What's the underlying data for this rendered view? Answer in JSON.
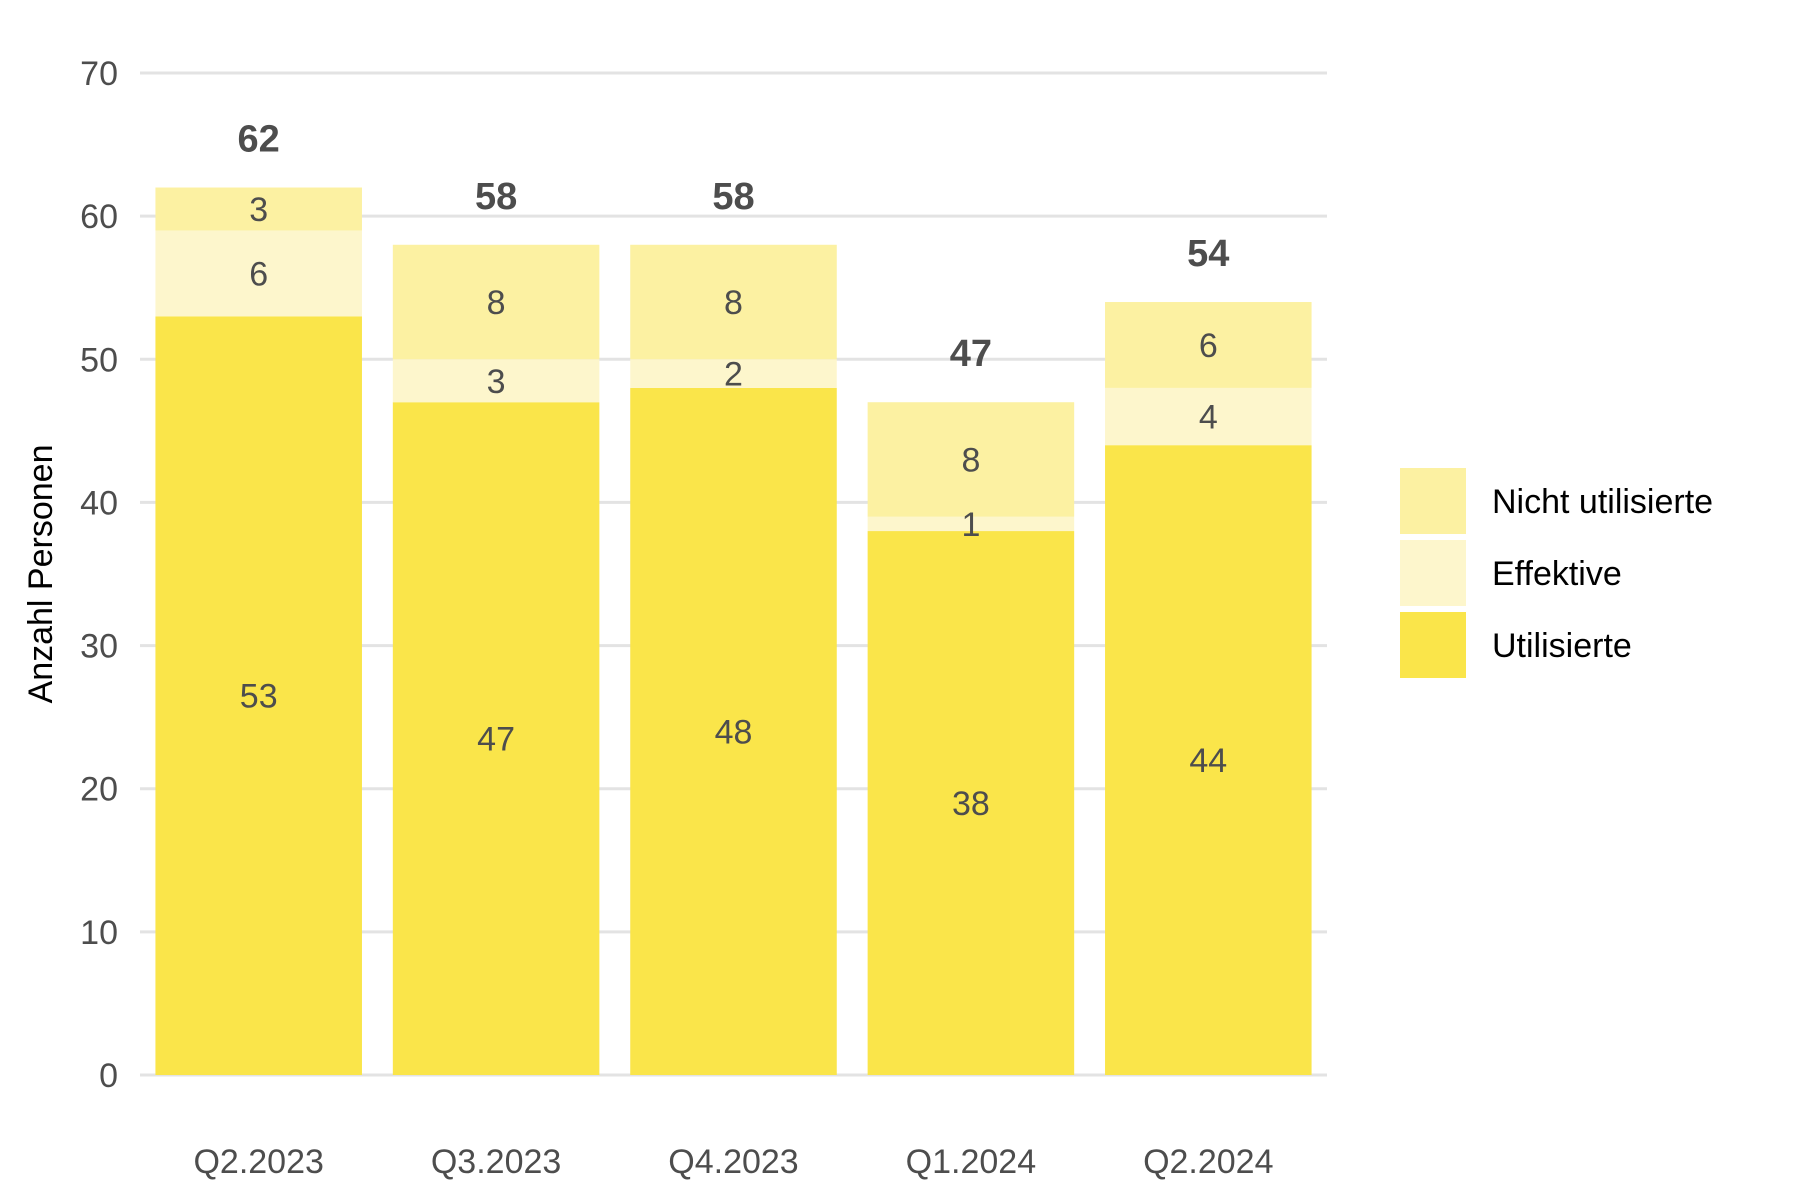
{
  "chart_data": {
    "type": "bar",
    "stacked": true,
    "categories": [
      "Q2.2023",
      "Q3.2023",
      "Q4.2023",
      "Q1.2024",
      "Q2.2024"
    ],
    "series": [
      {
        "name": "Utilisierte",
        "values": [
          53,
          47,
          48,
          38,
          44
        ],
        "color": "#fae54a"
      },
      {
        "name": "Effektive",
        "values": [
          6,
          3,
          2,
          1,
          4
        ],
        "color": "#fdf6cc"
      },
      {
        "name": "Nicht utilisierte",
        "values": [
          3,
          8,
          8,
          8,
          6
        ],
        "color": "#fcf1a2"
      }
    ],
    "totals": [
      62,
      58,
      58,
      47,
      54
    ],
    "ylabel": "Anzahl Personen",
    "ylim": [
      0,
      70
    ],
    "yticks": [
      0,
      10,
      20,
      30,
      40,
      50,
      60,
      70
    ],
    "grid": true,
    "legend_position": "right",
    "legend_order": [
      "Nicht utilisierte",
      "Effektive",
      "Utilisierte"
    ]
  }
}
